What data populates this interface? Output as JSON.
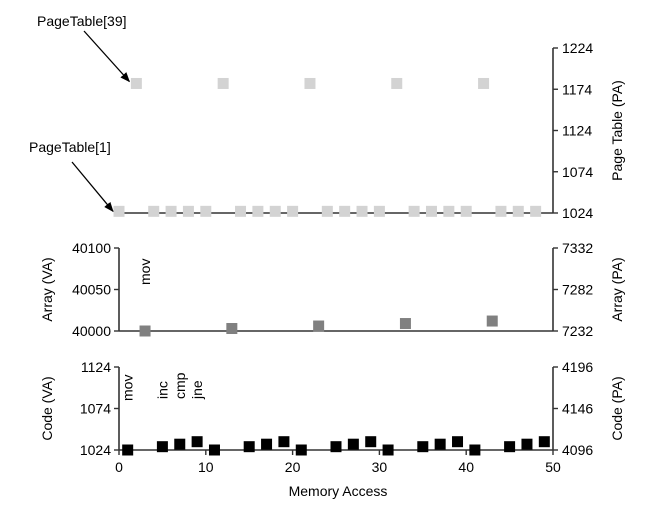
{
  "chart_data": [
    {
      "type": "scatter",
      "panel": "page-table",
      "ylabel_right": "Page Table (PA)",
      "ylim": [
        1024,
        1224
      ],
      "yticks": [
        1024,
        1074,
        1124,
        1174,
        1224
      ],
      "marker_color": "#d3d3d3",
      "annotations": [
        {
          "text": "PageTable[39]",
          "x": 2,
          "y": 1181
        },
        {
          "text": "PageTable[1]",
          "x": 0,
          "y": 1026
        }
      ],
      "points": [
        [
          0,
          1026
        ],
        [
          2,
          1181
        ],
        [
          4,
          1026
        ],
        [
          6,
          1026
        ],
        [
          8,
          1026
        ],
        [
          10,
          1026
        ],
        [
          12,
          1181
        ],
        [
          14,
          1026
        ],
        [
          16,
          1026
        ],
        [
          18,
          1026
        ],
        [
          20,
          1026
        ],
        [
          22,
          1181
        ],
        [
          24,
          1026
        ],
        [
          26,
          1026
        ],
        [
          28,
          1026
        ],
        [
          30,
          1026
        ],
        [
          32,
          1181
        ],
        [
          34,
          1026
        ],
        [
          36,
          1026
        ],
        [
          38,
          1026
        ],
        [
          40,
          1026
        ],
        [
          42,
          1181
        ],
        [
          44,
          1026
        ],
        [
          46,
          1026
        ],
        [
          48,
          1026
        ]
      ]
    },
    {
      "type": "scatter",
      "panel": "array",
      "ylabel_left": "Array (VA)",
      "ylabel_right": "Array (PA)",
      "ylim": [
        40000,
        40100
      ],
      "yticks_left": [
        40000,
        40050,
        40100
      ],
      "yticks_right": [
        7232,
        7282,
        7332
      ],
      "marker_color": "#808080",
      "annotations": [
        {
          "text": "mov",
          "x": 3
        }
      ],
      "points": [
        [
          3,
          40000
        ],
        [
          13,
          40003
        ],
        [
          23,
          40006
        ],
        [
          33,
          40009
        ],
        [
          43,
          40012
        ]
      ]
    },
    {
      "type": "scatter",
      "panel": "code",
      "ylabel_left": "Code (VA)",
      "ylabel_right": "Code (PA)",
      "xlabel": "Memory Access",
      "xlim": [
        0,
        50
      ],
      "xticks": [
        0,
        10,
        20,
        30,
        40,
        50
      ],
      "ylim": [
        1024,
        1124
      ],
      "yticks_left": [
        1024,
        1074,
        1124
      ],
      "yticks_right": [
        4096,
        4146,
        4196
      ],
      "marker_color": "#000000",
      "annotations": [
        {
          "text": "mov",
          "x": 1
        },
        {
          "text": "inc",
          "x": 5
        },
        {
          "text": "cmp",
          "x": 7
        },
        {
          "text": "jne",
          "x": 9
        }
      ],
      "points": [
        [
          1,
          1024
        ],
        [
          5,
          1028
        ],
        [
          7,
          1031
        ],
        [
          9,
          1034
        ],
        [
          11,
          1024
        ],
        [
          15,
          1028
        ],
        [
          17,
          1031
        ],
        [
          19,
          1034
        ],
        [
          21,
          1024
        ],
        [
          25,
          1028
        ],
        [
          27,
          1031
        ],
        [
          29,
          1034
        ],
        [
          31,
          1024
        ],
        [
          35,
          1028
        ],
        [
          37,
          1031
        ],
        [
          39,
          1034
        ],
        [
          41,
          1024
        ],
        [
          45,
          1028
        ],
        [
          47,
          1031
        ],
        [
          49,
          1034
        ]
      ]
    }
  ]
}
